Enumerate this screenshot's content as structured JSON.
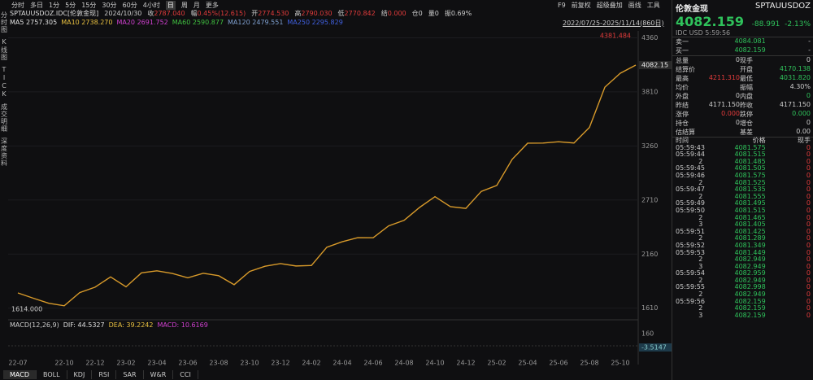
{
  "toolbar": {
    "periods": [
      "分时",
      "多日",
      "1分",
      "5分",
      "15分",
      "30分",
      "60分",
      "4小时",
      "日",
      "周",
      "月",
      "更多"
    ],
    "tools": [
      "F9",
      "前复权",
      "超级叠加",
      "画线",
      "工具"
    ]
  },
  "quote_line": {
    "symbol": "SPTAUUSDOZ.IDC[伦敦金现]",
    "date": "2024/10/30",
    "fields": [
      {
        "label": "收",
        "value": "2787.040",
        "color": "#e23b3b"
      },
      {
        "label": "幅",
        "value": "0.45%(12.615)",
        "color": "#e23b3b"
      },
      {
        "label": "开",
        "value": "2774.530",
        "color": "#e23b3b"
      },
      {
        "label": "高",
        "value": "2790.030",
        "color": "#e23b3b"
      },
      {
        "label": "低",
        "value": "2770.842",
        "color": "#e23b3b"
      },
      {
        "label": "结",
        "value": "0.000",
        "color": "#e23b3b"
      },
      {
        "label": "仓",
        "value": "0",
        "color": "#cccccc"
      },
      {
        "label": "量",
        "value": "0",
        "color": "#cccccc"
      },
      {
        "label": "振",
        "value": "0.69%",
        "color": "#cccccc"
      }
    ]
  },
  "ma_line": [
    {
      "label": "MA5",
      "value": "2757.305",
      "color": "#e0e0e0"
    },
    {
      "label": "MA10",
      "value": "2738.270",
      "color": "#e8c040"
    },
    {
      "label": "MA20",
      "value": "2691.752",
      "color": "#d040d0"
    },
    {
      "label": "MA60",
      "value": "2590.877",
      "color": "#40c040"
    },
    {
      "label": "MA120",
      "value": "2479.551",
      "color": "#7fa0d0"
    },
    {
      "label": "MA250",
      "value": "2295.829",
      "color": "#4060e0"
    }
  ],
  "range": "2022/07/25-2025/11/14(860日)",
  "side_tabs": [
    "分时图",
    "K线图",
    "TICK",
    "成交明细",
    "深度资料"
  ],
  "chart_data": {
    "type": "line",
    "color": "#d89a2a",
    "grid": true,
    "categories": [
      "22-07",
      null,
      null,
      "22-10",
      null,
      "22-12",
      null,
      "23-02",
      null,
      "23-04",
      null,
      "23-06",
      null,
      "23-08",
      null,
      "23-10",
      null,
      "23-12",
      null,
      "24-02",
      null,
      "24-04",
      null,
      "24-06",
      null,
      "24-08",
      null,
      "24-10",
      null,
      "24-12",
      null,
      "25-02",
      null,
      "25-04",
      null,
      "25-06",
      null,
      "25-08",
      null,
      "25-10",
      null
    ],
    "values": [
      1765,
      1711,
      1660,
      1634,
      1768,
      1824,
      1928,
      1827,
      1969,
      1990,
      1963,
      1919,
      1965,
      1940,
      1849,
      1983,
      2036,
      2063,
      2039,
      2044,
      2230,
      2286,
      2327,
      2326,
      2447,
      2503,
      2634,
      2744,
      2643,
      2625,
      2798,
      2858,
      3124,
      3288,
      3289,
      3303,
      3290,
      3448,
      3858,
      4000,
      4082
    ],
    "ylim": [
      1500,
      4430
    ],
    "yticks": [
      1610,
      2160,
      2710,
      3260,
      3810,
      4360
    ],
    "annotations": {
      "high": "4381.484",
      "low": "1614.000",
      "last": "4082.15"
    }
  },
  "macd": {
    "title": "MACD(12,26,9)",
    "fields": [
      {
        "label": "DIF:",
        "value": "44.5327",
        "color": "#e0e0e0"
      },
      {
        "label": "DEA:",
        "value": "39.2242",
        "color": "#e8c040"
      },
      {
        "label": "MACD:",
        "value": "10.6169",
        "color": "#d040d0"
      }
    ],
    "axis_top": "160",
    "axis_last": "-3.5147"
  },
  "indicator_tabs": [
    "MACD",
    "BOLL",
    "KDJ",
    "RSI",
    "SAR",
    "W&R",
    "CCI"
  ],
  "quote_panel": {
    "name": "伦敦金现",
    "code": "SPTAUUSDOZ",
    "price": "4082.159",
    "change": "-88.991",
    "pct": "-2.13%",
    "meta": "IDC USD 5:59:56",
    "book": [
      [
        "卖一",
        "4084.081",
        "-"
      ],
      [
        "买一",
        "4082.159",
        "-"
      ]
    ],
    "stats": [
      [
        "总量",
        "0",
        "现手",
        "0"
      ],
      [
        "结算价",
        "",
        "开盘",
        "4170.138"
      ],
      [
        "最高",
        "4211.310",
        "最低",
        "4031.820"
      ],
      [
        "均价",
        "",
        "振幅",
        "4.30%"
      ],
      [
        "外盘",
        "0",
        "内盘",
        "0"
      ],
      [
        "昨结",
        "4171.150",
        "昨收",
        "4171.150"
      ],
      [
        "涨停",
        "0.000",
        "跌停",
        "0.000"
      ],
      [
        "持仓",
        "0",
        "增仓",
        "0"
      ],
      [
        "估结算",
        "",
        "基差",
        "0.00"
      ]
    ],
    "tick_header": [
      "时间",
      "价格",
      "现手"
    ],
    "ticks": [
      [
        "05:59:43",
        "4081.575",
        "0"
      ],
      [
        "05:59:44",
        "4081.515",
        "0"
      ],
      [
        "2",
        "4081.485",
        "0"
      ],
      [
        "05:59:45",
        "4081.505",
        "0"
      ],
      [
        "05:59:46",
        "4081.575",
        "0"
      ],
      [
        "2",
        "4081.525",
        "0"
      ],
      [
        "05:59:47",
        "4081.535",
        "0"
      ],
      [
        "2",
        "4081.555",
        "0"
      ],
      [
        "05:59:49",
        "4081.495",
        "0"
      ],
      [
        "05:59:50",
        "4081.515",
        "0"
      ],
      [
        "2",
        "4081.465",
        "0"
      ],
      [
        "3",
        "4081.405",
        "0"
      ],
      [
        "05:59:51",
        "4081.425",
        "0"
      ],
      [
        "2",
        "4081.289",
        "0"
      ],
      [
        "05:59:52",
        "4081.349",
        "0"
      ],
      [
        "05:59:53",
        "4081.449",
        "0"
      ],
      [
        "2",
        "4082.949",
        "0"
      ],
      [
        "3",
        "4082.949",
        "0"
      ],
      [
        "05:59:54",
        "4082.959",
        "0"
      ],
      [
        "2",
        "4082.949",
        "0"
      ],
      [
        "05:59:55",
        "4082.998",
        "0"
      ],
      [
        "2",
        "4082.949",
        "0"
      ],
      [
        "05:59:56",
        "4082.159",
        "0"
      ],
      [
        "2",
        "4082.159",
        "0"
      ],
      [
        "3",
        "4082.159",
        "0"
      ]
    ]
  }
}
